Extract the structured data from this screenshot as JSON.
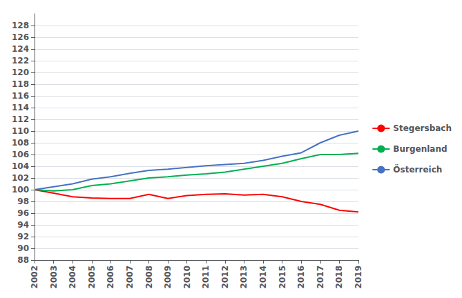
{
  "chart_data": {
    "type": "line",
    "x": [
      2002,
      2003,
      2004,
      2005,
      2006,
      2007,
      2008,
      2009,
      2010,
      2011,
      2012,
      2013,
      2014,
      2015,
      2016,
      2017,
      2018,
      2019
    ],
    "xlim": [
      2002,
      2019
    ],
    "xticks": [
      2002,
      2003,
      2004,
      2005,
      2006,
      2007,
      2008,
      2009,
      2010,
      2011,
      2012,
      2013,
      2014,
      2015,
      2016,
      2017,
      2018,
      2019
    ],
    "ylim": [
      88,
      130
    ],
    "yticks": [
      88,
      90,
      92,
      94,
      96,
      98,
      100,
      102,
      104,
      106,
      108,
      110,
      112,
      114,
      116,
      118,
      120,
      122,
      124,
      126,
      128
    ],
    "grid": true,
    "legend": "right",
    "series": [
      {
        "name": "Stegersbach",
        "color": "#ff0000",
        "values": [
          100.0,
          99.4,
          98.8,
          98.6,
          98.5,
          98.5,
          99.2,
          98.5,
          99.0,
          99.2,
          99.3,
          99.1,
          99.2,
          98.8,
          98.0,
          97.5,
          96.5,
          96.2
        ]
      },
      {
        "name": "Burgenland",
        "color": "#00b050",
        "values": [
          100.0,
          99.8,
          100.0,
          100.7,
          101.0,
          101.5,
          102.0,
          102.2,
          102.5,
          102.7,
          103.0,
          103.5,
          104.0,
          104.5,
          105.3,
          106.0,
          106.0,
          106.2
        ]
      },
      {
        "name": "Österreich",
        "color": "#4472c4",
        "values": [
          100.0,
          100.5,
          101.0,
          101.8,
          102.2,
          102.8,
          103.3,
          103.5,
          103.8,
          104.1,
          104.3,
          104.5,
          105.0,
          105.7,
          106.3,
          108.0,
          109.3,
          110.0
        ]
      }
    ]
  }
}
